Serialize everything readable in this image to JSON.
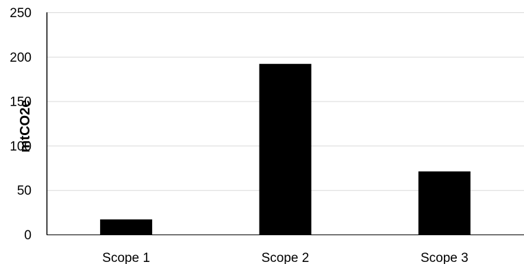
{
  "chart_data": {
    "type": "bar",
    "categories": [
      "Scope 1",
      "Scope 2",
      "Scope 3"
    ],
    "values": [
      17,
      192,
      71
    ],
    "title": "",
    "xlabel": "",
    "ylabel": "mtCO2e",
    "ylim": [
      0,
      250
    ],
    "yticks": [
      0,
      50,
      100,
      150,
      200,
      250
    ],
    "grid": true,
    "legend": "none",
    "colors": {
      "bar": "#000000",
      "grid": "#d9d9d9",
      "axis": "#000000",
      "text": "#000000"
    }
  }
}
